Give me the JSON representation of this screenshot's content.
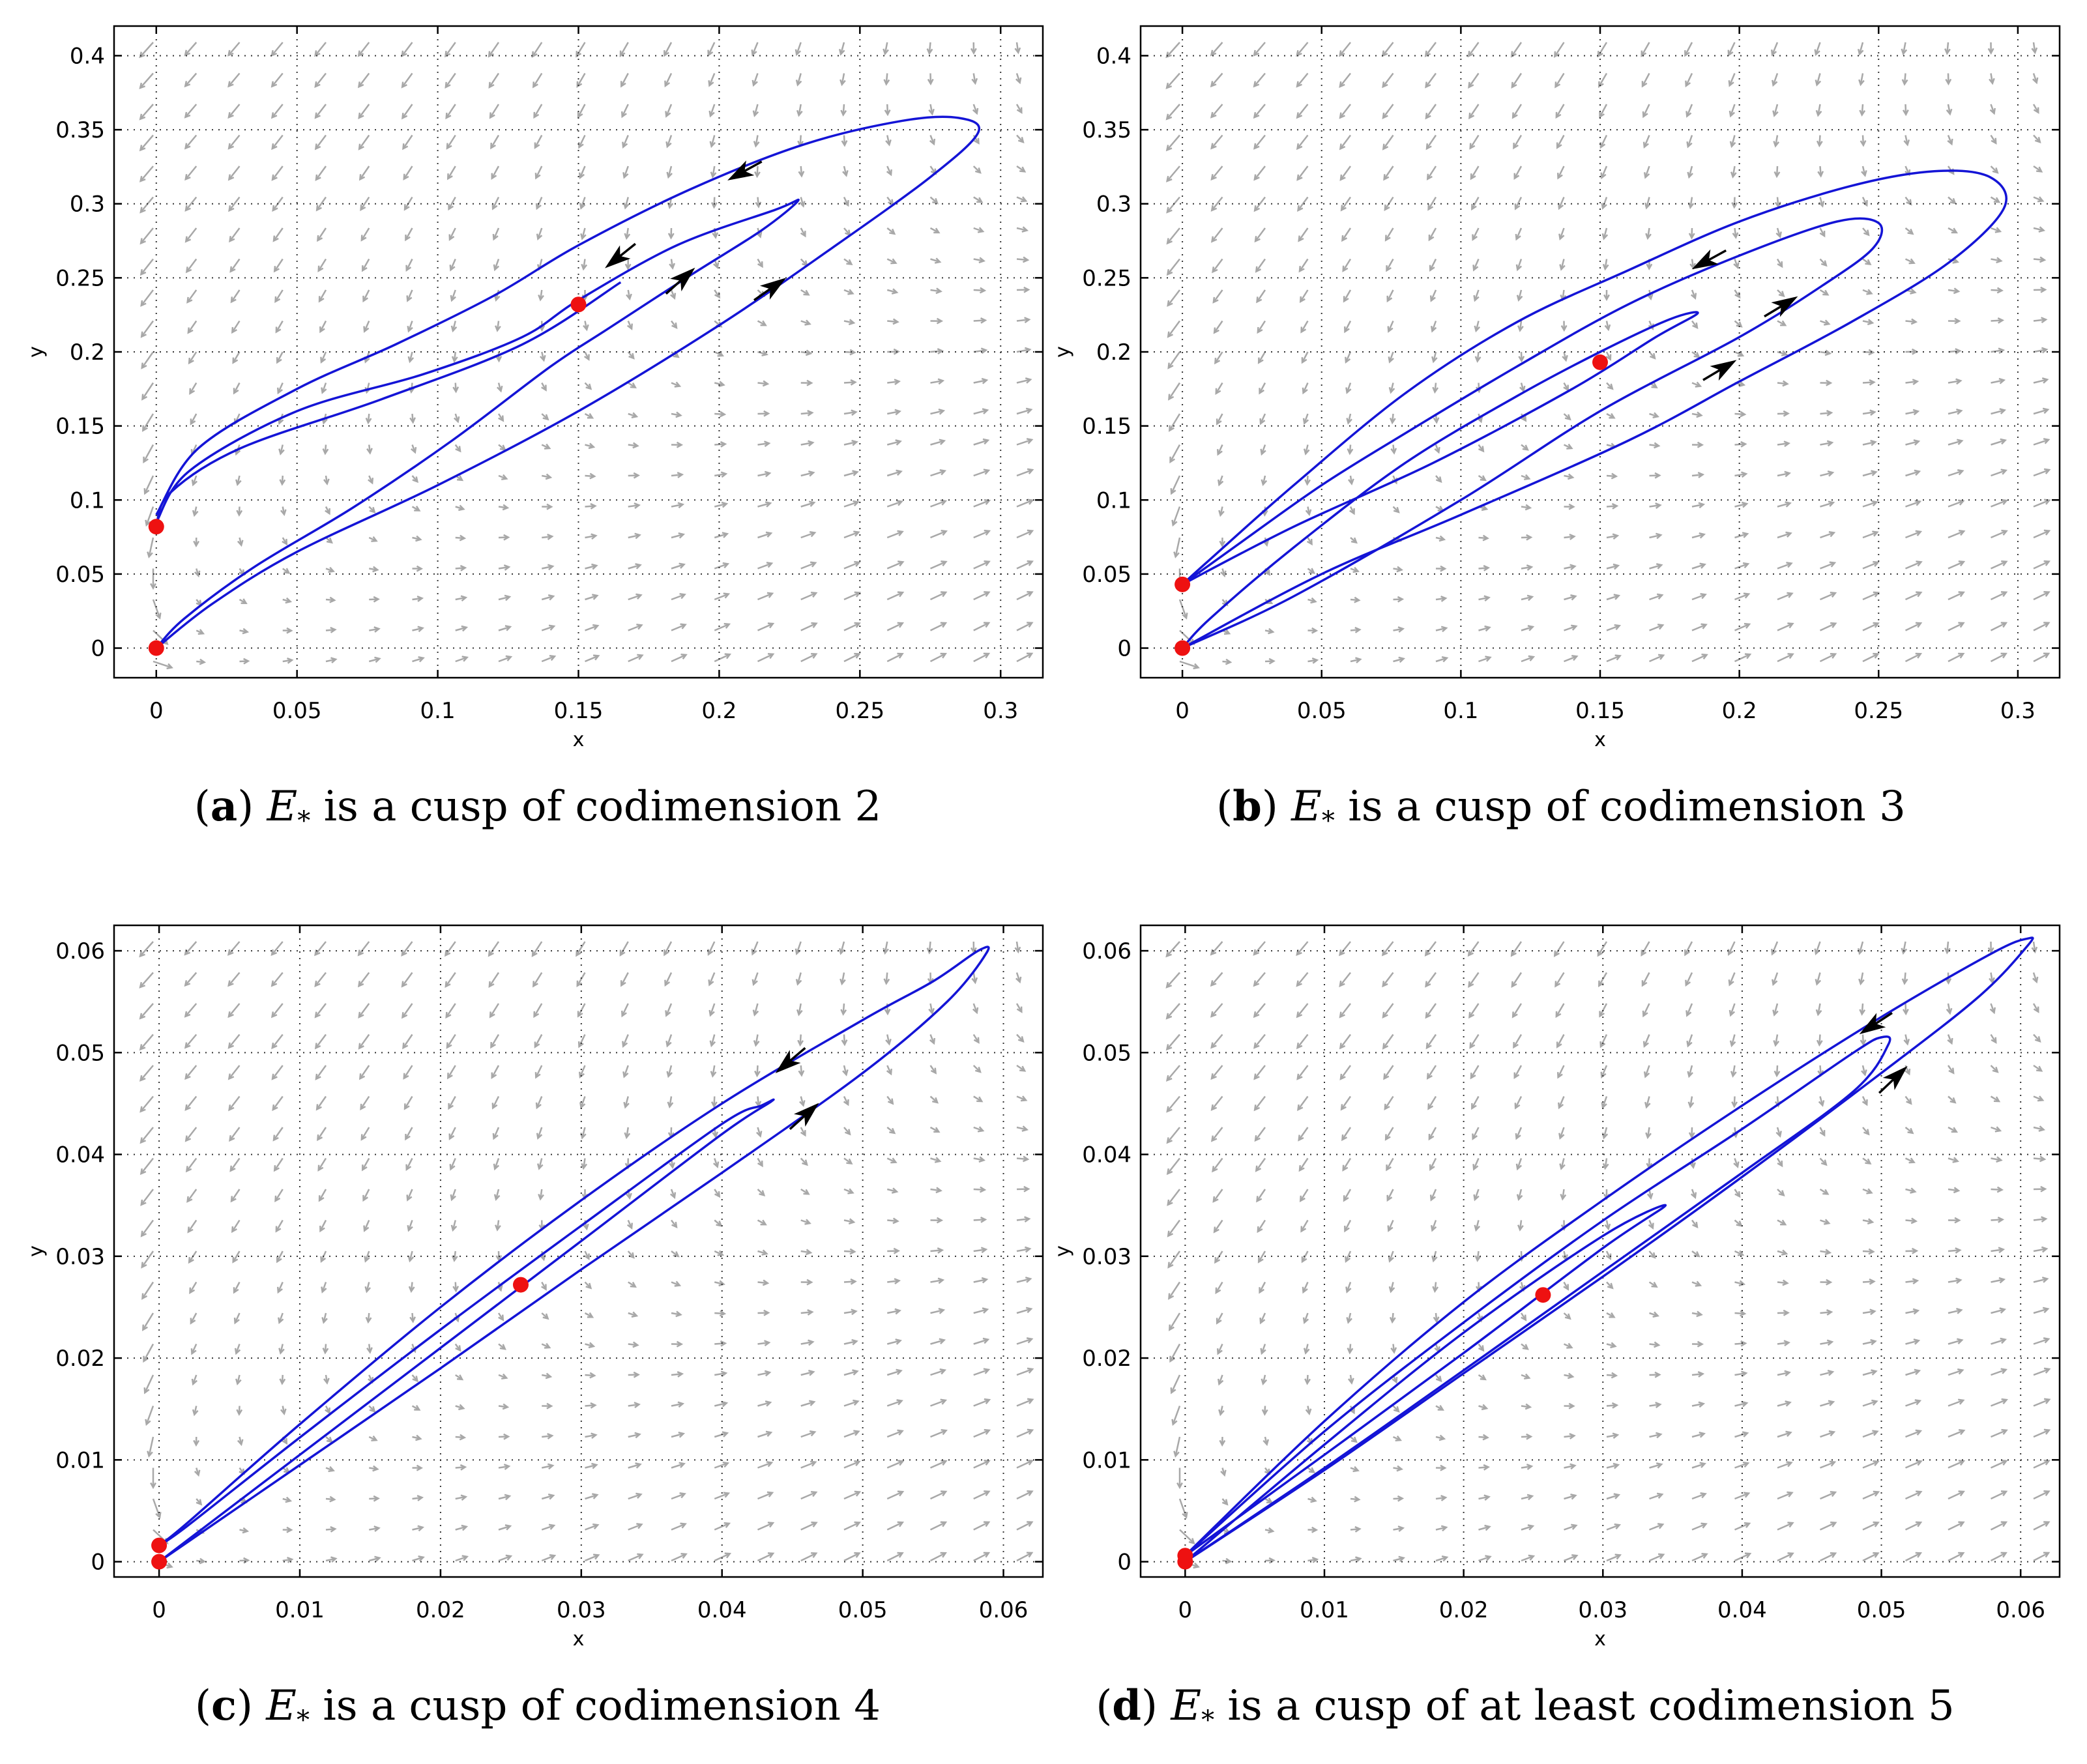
{
  "colors": {
    "trajectory": "#1414d6",
    "equilibrium": "#ee1111",
    "arrow_head": "#000000",
    "vector_field": "#a8a8a8",
    "grid": "#333333"
  },
  "chart_data": [
    {
      "type": "line",
      "panel": "a",
      "caption": {
        "letter": "a",
        "symbol": "E",
        "subscript": "*",
        "text": "is a cusp of codimension 2"
      },
      "xlabel": "x",
      "ylabel": "y",
      "xlim": [
        -0.015,
        0.315
      ],
      "ylim": [
        -0.02,
        0.42
      ],
      "xticks": [
        0,
        0.05,
        0.1,
        0.15,
        0.2,
        0.25,
        0.3
      ],
      "xtick_labels": [
        "0",
        "0.05",
        "0.1",
        "0.15",
        "0.2",
        "0.25",
        "0.3"
      ],
      "yticks": [
        0,
        0.05,
        0.1,
        0.15,
        0.2,
        0.25,
        0.3,
        0.35,
        0.4
      ],
      "ytick_labels": [
        "0",
        "0.05",
        "0.1",
        "0.15",
        "0.2",
        "0.25",
        "0.3",
        "0.35",
        "0.4"
      ],
      "grid": true,
      "equilibria": [
        [
          0,
          0
        ],
        [
          0,
          0.082
        ],
        [
          0.15,
          0.232
        ]
      ],
      "series": [
        {
          "name": "trajectory-1",
          "points": [
            [
              0,
              0.082
            ],
            [
              0.005,
              0.105
            ],
            [
              0.03,
              0.135
            ],
            [
              0.08,
              0.168
            ],
            [
              0.13,
              0.205
            ],
            [
              0.165,
              0.247
            ]
          ]
        },
        {
          "name": "trajectory-2",
          "points": [
            [
              0,
              0
            ],
            [
              0.01,
              0.02
            ],
            [
              0.035,
              0.055
            ],
            [
              0.07,
              0.095
            ],
            [
              0.105,
              0.14
            ],
            [
              0.14,
              0.19
            ],
            [
              0.16,
              0.215
            ],
            [
              0.19,
              0.252
            ],
            [
              0.215,
              0.282
            ],
            [
              0.228,
              0.302
            ],
            [
              0.22,
              0.296
            ],
            [
              0.185,
              0.272
            ],
            [
              0.15,
              0.235
            ],
            [
              0.13,
              0.21
            ],
            [
              0.095,
              0.185
            ],
            [
              0.05,
              0.16
            ],
            [
              0.012,
              0.12
            ],
            [
              0,
              0.085
            ]
          ]
        },
        {
          "name": "trajectory-3",
          "points": [
            [
              0,
              0
            ],
            [
              0.02,
              0.03
            ],
            [
              0.05,
              0.065
            ],
            [
              0.1,
              0.11
            ],
            [
              0.15,
              0.16
            ],
            [
              0.2,
              0.218
            ],
            [
              0.24,
              0.27
            ],
            [
              0.275,
              0.318
            ],
            [
              0.292,
              0.348
            ],
            [
              0.285,
              0.358
            ],
            [
              0.265,
              0.356
            ],
            [
              0.23,
              0.34
            ],
            [
              0.19,
              0.31
            ],
            [
              0.15,
              0.272
            ],
            [
              0.12,
              0.238
            ],
            [
              0.085,
              0.205
            ],
            [
              0.05,
              0.175
            ],
            [
              0.015,
              0.135
            ],
            [
              0,
              0.09
            ]
          ]
        }
      ],
      "direction_arrows": [
        {
          "at": [
            0.207,
            0.32
          ],
          "dir": [
            -1,
            -0.55
          ]
        },
        {
          "at": [
            0.163,
            0.262
          ],
          "dir": [
            -1,
            -0.8
          ]
        },
        {
          "at": [
            0.188,
            0.251
          ],
          "dir": [
            1,
            0.9
          ]
        },
        {
          "at": [
            0.22,
            0.245
          ],
          "dir": [
            1,
            0.7
          ]
        }
      ]
    },
    {
      "type": "line",
      "panel": "b",
      "caption": {
        "letter": "b",
        "symbol": "E",
        "subscript": "*",
        "text": "is a cusp of codimension 3"
      },
      "xlabel": "x",
      "ylabel": "y",
      "xlim": [
        -0.015,
        0.315
      ],
      "ylim": [
        -0.02,
        0.42
      ],
      "xticks": [
        0,
        0.05,
        0.1,
        0.15,
        0.2,
        0.25,
        0.3
      ],
      "xtick_labels": [
        "0",
        "0.05",
        "0.1",
        "0.15",
        "0.2",
        "0.25",
        "0.3"
      ],
      "yticks": [
        0,
        0.05,
        0.1,
        0.15,
        0.2,
        0.25,
        0.3,
        0.35,
        0.4
      ],
      "ytick_labels": [
        "0",
        "0.05",
        "0.1",
        "0.15",
        "0.2",
        "0.25",
        "0.3",
        "0.35",
        "0.4"
      ],
      "grid": true,
      "equilibria": [
        [
          0,
          0
        ],
        [
          0,
          0.043
        ],
        [
          0.15,
          0.193
        ]
      ],
      "series": [
        {
          "name": "trajectory-1",
          "points": [
            [
              0,
              0.043
            ],
            [
              0.04,
              0.082
            ],
            [
              0.09,
              0.125
            ],
            [
              0.14,
              0.175
            ],
            [
              0.17,
              0.21
            ],
            [
              0.185,
              0.226
            ],
            [
              0.175,
              0.222
            ],
            [
              0.15,
              0.2
            ],
            [
              0.12,
              0.17
            ],
            [
              0.08,
              0.125
            ],
            [
              0.04,
              0.068
            ],
            [
              0.01,
              0.02
            ],
            [
              0,
              0
            ]
          ]
        },
        {
          "name": "trajectory-2",
          "points": [
            [
              0,
              0
            ],
            [
              0.04,
              0.035
            ],
            [
              0.1,
              0.1
            ],
            [
              0.15,
              0.16
            ],
            [
              0.2,
              0.21
            ],
            [
              0.23,
              0.245
            ],
            [
              0.248,
              0.27
            ],
            [
              0.25,
              0.287
            ],
            [
              0.235,
              0.288
            ],
            [
              0.2,
              0.265
            ],
            [
              0.16,
              0.232
            ],
            [
              0.12,
              0.19
            ],
            [
              0.08,
              0.145
            ],
            [
              0.05,
              0.11
            ],
            [
              0.02,
              0.07
            ],
            [
              0,
              0.043
            ]
          ]
        },
        {
          "name": "trajectory-3",
          "points": [
            [
              0,
              0
            ],
            [
              0.05,
              0.05
            ],
            [
              0.1,
              0.09
            ],
            [
              0.16,
              0.14
            ],
            [
              0.2,
              0.18
            ],
            [
              0.24,
              0.22
            ],
            [
              0.275,
              0.26
            ],
            [
              0.295,
              0.297
            ],
            [
              0.29,
              0.318
            ],
            [
              0.27,
              0.322
            ],
            [
              0.24,
              0.312
            ],
            [
              0.2,
              0.288
            ],
            [
              0.16,
              0.255
            ],
            [
              0.12,
              0.22
            ],
            [
              0.08,
              0.172
            ],
            [
              0.04,
              0.11
            ],
            [
              0.01,
              0.06
            ],
            [
              0,
              0.043
            ]
          ]
        }
      ],
      "direction_arrows": [
        {
          "at": [
            0.187,
            0.26
          ],
          "dir": [
            -1,
            -0.55
          ]
        },
        {
          "at": [
            0.217,
            0.233
          ],
          "dir": [
            1,
            0.6
          ]
        },
        {
          "at": [
            0.195,
            0.19
          ],
          "dir": [
            1,
            0.6
          ]
        }
      ]
    },
    {
      "type": "line",
      "panel": "c",
      "caption": {
        "letter": "c",
        "symbol": "E",
        "subscript": "*",
        "text": "is a cusp of codimension 4"
      },
      "xlabel": "x",
      "ylabel": "y",
      "xlim": [
        -0.0032,
        0.0628
      ],
      "ylim": [
        -0.0015,
        0.0625
      ],
      "xticks": [
        0,
        0.01,
        0.02,
        0.03,
        0.04,
        0.05,
        0.06
      ],
      "xtick_labels": [
        "0",
        "0.01",
        "0.02",
        "0.03",
        "0.04",
        "0.05",
        "0.06"
      ],
      "yticks": [
        0,
        0.01,
        0.02,
        0.03,
        0.04,
        0.05,
        0.06
      ],
      "ytick_labels": [
        "0",
        "0.01",
        "0.02",
        "0.03",
        "0.04",
        "0.05",
        "0.06"
      ],
      "grid": true,
      "equilibria": [
        [
          0,
          0
        ],
        [
          0,
          0.0016
        ],
        [
          0.0257,
          0.0272
        ]
      ],
      "series": [
        {
          "name": "trajectory-1",
          "points": [
            [
              0,
              0
            ],
            [
              0.01,
              0.0105
            ],
            [
              0.02,
              0.021
            ],
            [
              0.03,
              0.0315
            ],
            [
              0.04,
              0.042
            ],
            [
              0.0435,
              0.0452
            ],
            [
              0.0428,
              0.0448
            ],
            [
              0.04,
              0.043
            ],
            [
              0.03,
              0.033
            ],
            [
              0.02,
              0.0228
            ],
            [
              0.01,
              0.0122
            ],
            [
              0.002,
              0.0035
            ],
            [
              0,
              0.0016
            ]
          ]
        },
        {
          "name": "trajectory-2",
          "points": [
            [
              0,
              0
            ],
            [
              0.01,
              0.0095
            ],
            [
              0.02,
              0.019
            ],
            [
              0.03,
              0.0287
            ],
            [
              0.04,
              0.0382
            ],
            [
              0.05,
              0.048
            ],
            [
              0.056,
              0.055
            ],
            [
              0.0588,
              0.0598
            ],
            [
              0.0582,
              0.06
            ],
            [
              0.055,
              0.057
            ],
            [
              0.05,
              0.0532
            ],
            [
              0.04,
              0.045
            ],
            [
              0.03,
              0.0355
            ],
            [
              0.02,
              0.025
            ],
            [
              0.01,
              0.0135
            ],
            [
              0.002,
              0.0038
            ],
            [
              0,
              0.0016
            ]
          ]
        }
      ],
      "direction_arrows": [
        {
          "at": [
            0.0445,
            0.0488
          ],
          "dir": [
            -1,
            -0.85
          ]
        },
        {
          "at": [
            0.0462,
            0.0442
          ],
          "dir": [
            1,
            0.9
          ]
        }
      ]
    },
    {
      "type": "line",
      "panel": "d",
      "caption": {
        "letter": "d",
        "symbol": "E",
        "subscript": "*",
        "text": "is a cusp of at least codimension 5"
      },
      "xlabel": "x",
      "ylabel": "y",
      "xlim": [
        -0.0032,
        0.0628
      ],
      "ylim": [
        -0.0015,
        0.0625
      ],
      "xticks": [
        0,
        0.01,
        0.02,
        0.03,
        0.04,
        0.05,
        0.06
      ],
      "xtick_labels": [
        "0",
        "0.01",
        "0.02",
        "0.03",
        "0.04",
        "0.05",
        "0.06"
      ],
      "yticks": [
        0,
        0.01,
        0.02,
        0.03,
        0.04,
        0.05,
        0.06
      ],
      "ytick_labels": [
        "0",
        "0.01",
        "0.02",
        "0.03",
        "0.04",
        "0.05",
        "0.06"
      ],
      "grid": true,
      "equilibria": [
        [
          0,
          0
        ],
        [
          0,
          0.0006
        ],
        [
          0.0257,
          0.0262
        ]
      ],
      "series": [
        {
          "name": "trajectory-1",
          "points": [
            [
              0,
              0.0006
            ],
            [
              0.01,
              0.0105
            ],
            [
              0.02,
              0.0205
            ],
            [
              0.03,
              0.0308
            ],
            [
              0.0345,
              0.035
            ],
            [
              0.03,
              0.032
            ],
            [
              0.02,
              0.0225
            ],
            [
              0.01,
              0.0115
            ],
            [
              0,
              0
            ]
          ]
        },
        {
          "name": "trajectory-2",
          "points": [
            [
              0,
              0
            ],
            [
              0.01,
              0.0092
            ],
            [
              0.02,
              0.0188
            ],
            [
              0.03,
              0.0285
            ],
            [
              0.04,
              0.0382
            ],
            [
              0.048,
              0.0462
            ],
            [
              0.0505,
              0.0508
            ],
            [
              0.05,
              0.0515
            ],
            [
              0.048,
              0.05
            ],
            [
              0.04,
              0.0425
            ],
            [
              0.03,
              0.0335
            ],
            [
              0.02,
              0.0235
            ],
            [
              0.01,
              0.0128
            ],
            [
              0,
              0.0006
            ]
          ]
        },
        {
          "name": "trajectory-3",
          "points": [
            [
              0,
              0
            ],
            [
              0.01,
              0.009
            ],
            [
              0.02,
              0.0185
            ],
            [
              0.03,
              0.028
            ],
            [
              0.04,
              0.0378
            ],
            [
              0.05,
              0.048
            ],
            [
              0.057,
              0.0555
            ],
            [
              0.0605,
              0.0605
            ],
            [
              0.0605,
              0.0612
            ],
            [
              0.058,
              0.0598
            ],
            [
              0.05,
              0.0535
            ],
            [
              0.04,
              0.0448
            ],
            [
              0.03,
              0.0355
            ],
            [
              0.02,
              0.0255
            ],
            [
              0.01,
              0.0138
            ],
            [
              0,
              0.0006
            ]
          ]
        }
      ],
      "direction_arrows": [
        {
          "at": [
            0.0492,
            0.0525
          ],
          "dir": [
            -1,
            -0.65
          ]
        },
        {
          "at": [
            0.0512,
            0.0478
          ],
          "dir": [
            1,
            0.95
          ]
        }
      ]
    }
  ]
}
